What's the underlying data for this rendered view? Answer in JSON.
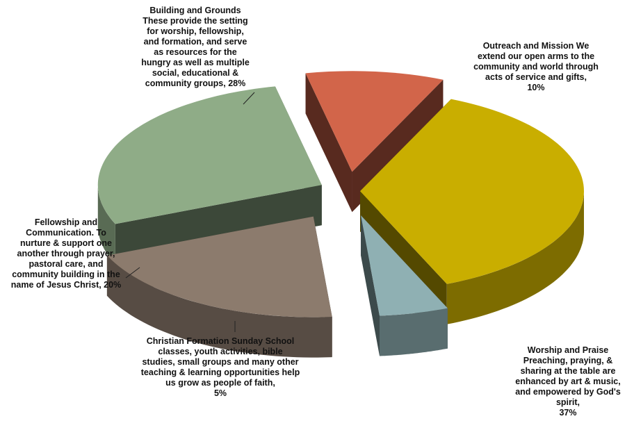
{
  "chart_data": {
    "type": "pie",
    "three_d": true,
    "exploded": true,
    "legend": "none",
    "slices": [
      {
        "label": "Worship and Praise\nPreaching, praying, &\nsharing at the table are\nenhanced by art & music,\nand empowered by God's\nspirit,",
        "value": 37,
        "value_label": "37%",
        "color": "#c9ae00"
      },
      {
        "label": "Christian Formation Sunday School\nclasses, youth activities, bible\nstudies, small groups and many other\nteaching & learning opportunities help\nus grow as people of faith,",
        "value": 5,
        "value_label": "5%",
        "color": "#8fb0b3"
      },
      {
        "label": "Fellowship and\nCommunication. To\nnurture & support one\nanother through prayer,\npastoral care,  and\ncommunity building in the\nname of Jesus Christ,",
        "value": 20,
        "value_label": "20%",
        "color": "#8c7b6d"
      },
      {
        "label": "Building and Grounds\nThese provide the setting\nfor worship, fellowship,\nand formation, and serve\nas resources for the\nhungry as well as multiple\nsocial, educational &\ncommunity groups,",
        "value": 28,
        "value_label": "28%",
        "color": "#8fac87"
      },
      {
        "label": "Outreach and Mission  We\nextend our open arms to the\ncommunity and world through\nacts of service and gifts,",
        "value": 10,
        "value_label": "10%",
        "color": "#d2654a"
      }
    ]
  }
}
